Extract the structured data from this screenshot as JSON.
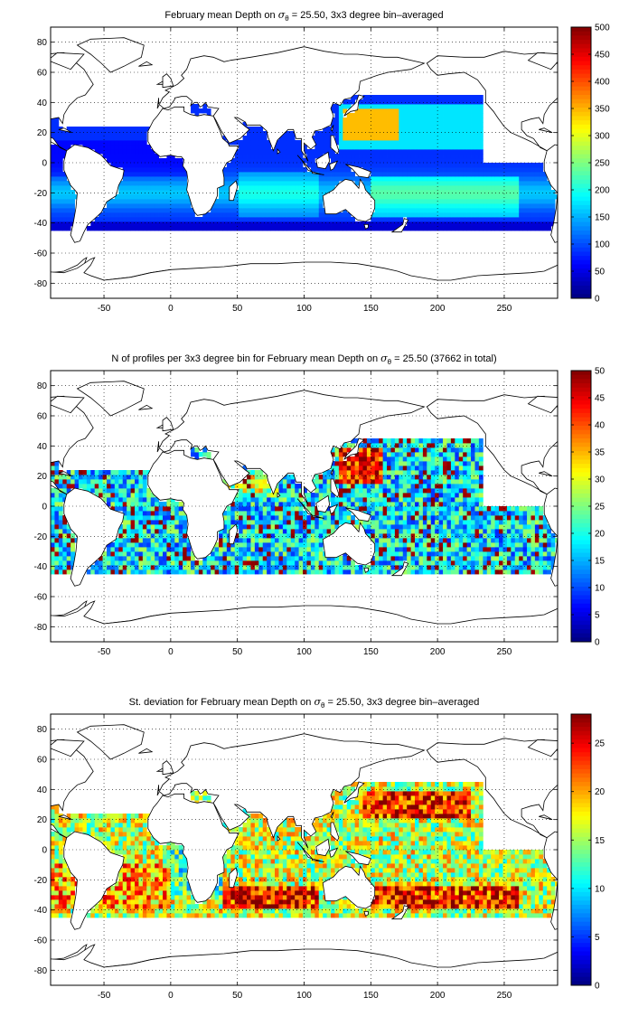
{
  "figure": {
    "background": "#ffffff",
    "land_color": "#ffffff",
    "coast_color": "#000000"
  },
  "chart_data": [
    {
      "type": "heatmap",
      "title_pre": "February mean Depth on ",
      "title_sigma": "σ",
      "title_sub": "θ",
      "title_post": " = 25.50, 3x3 degree bin–averaged",
      "xlabel": "",
      "ylabel": "",
      "xlim": [
        -90,
        290
      ],
      "ylim": [
        -90,
        90
      ],
      "x_ticks": [
        -50,
        0,
        50,
        100,
        150,
        200,
        250
      ],
      "y_ticks": [
        -80,
        -60,
        -40,
        -20,
        0,
        20,
        40,
        60,
        80
      ],
      "grid": true,
      "grid_style": "dotted",
      "colorbar": {
        "range": [
          0,
          500
        ],
        "ticks": [
          0,
          50,
          100,
          150,
          200,
          250,
          300,
          350,
          400,
          450,
          500
        ],
        "colormap": "jet"
      },
      "field": "mean_depth"
    },
    {
      "type": "heatmap",
      "title_pre": "N of profiles per 3x3 degree bin for February mean Depth on ",
      "title_sigma": "σ",
      "title_sub": "θ",
      "title_post": " = 25.50 (37662 in total)",
      "xlabel": "",
      "ylabel": "",
      "xlim": [
        -90,
        290
      ],
      "ylim": [
        -90,
        90
      ],
      "x_ticks": [
        -50,
        0,
        50,
        100,
        150,
        200,
        250
      ],
      "y_ticks": [
        -80,
        -60,
        -40,
        -20,
        0,
        20,
        40,
        60,
        80
      ],
      "grid": true,
      "grid_style": "dotted",
      "colorbar": {
        "range": [
          0,
          50
        ],
        "ticks": [
          0,
          5,
          10,
          15,
          20,
          25,
          30,
          35,
          40,
          45,
          50
        ],
        "colormap": "jet"
      },
      "field": "profile_count"
    },
    {
      "type": "heatmap",
      "title_pre": "St. deviation for February mean Depth on ",
      "title_sigma": "σ",
      "title_sub": "θ",
      "title_post": " = 25.50, 3x3 degree bin–averaged",
      "xlabel": "",
      "ylabel": "",
      "xlim": [
        -90,
        290
      ],
      "ylim": [
        -90,
        90
      ],
      "x_ticks": [
        -50,
        0,
        50,
        100,
        150,
        200,
        250
      ],
      "y_ticks": [
        -80,
        -60,
        -40,
        -20,
        0,
        20,
        40,
        60,
        80
      ],
      "grid": true,
      "grid_style": "dotted",
      "colorbar": {
        "range": [
          0,
          28
        ],
        "ticks": [
          0,
          5,
          10,
          15,
          20,
          25
        ],
        "colormap": "jet"
      },
      "field": "std_depth"
    }
  ]
}
